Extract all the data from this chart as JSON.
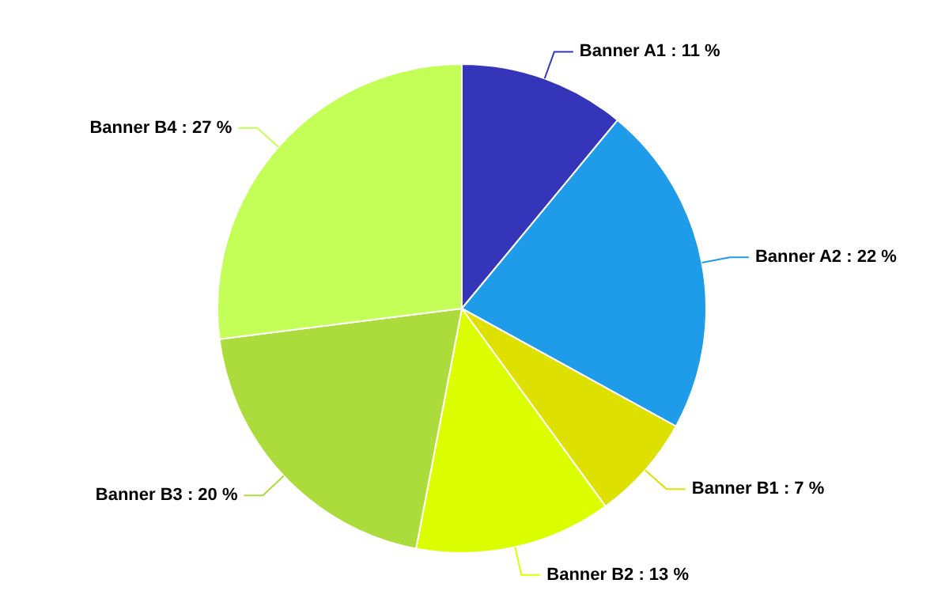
{
  "chart_data": {
    "type": "pie",
    "categories": [
      "Banner A1",
      "Banner A2",
      "Banner B1",
      "Banner B2",
      "Banner B3",
      "Banner B4"
    ],
    "values": [
      11,
      22,
      7,
      13,
      20,
      27
    ],
    "value_labels": [
      "11 %",
      "22 %",
      "7 %",
      "13 %",
      "20 %",
      "27 %"
    ],
    "colors": [
      "#3535b9",
      "#1e9be9",
      "#dee000",
      "#dcff00",
      "#acdc3c",
      "#c4ff58"
    ],
    "legend": false
  }
}
